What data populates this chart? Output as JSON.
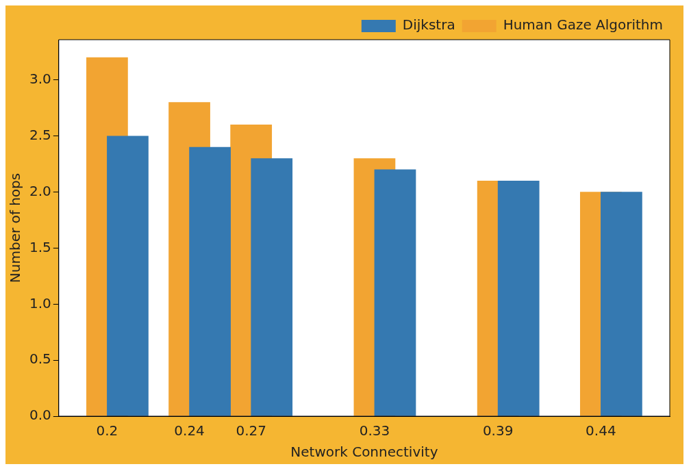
{
  "chart_data": {
    "type": "bar",
    "xlabel": "Network Connectivity",
    "ylabel": "Number of hops",
    "xlim": [
      0.1765,
      0.4735
    ],
    "xticks": [
      0.2,
      0.24,
      0.27,
      0.33,
      0.39,
      0.44
    ],
    "ylim": [
      0,
      3.36
    ],
    "yticks": [
      {
        "value": 0,
        "label": "0.0"
      },
      {
        "value": 0.5,
        "label": "0.5"
      },
      {
        "value": 1,
        "label": "1.0"
      },
      {
        "value": 1.5,
        "label": "1.5"
      },
      {
        "value": 2,
        "label": "2.0"
      },
      {
        "value": 2.5,
        "label": "2.5"
      },
      {
        "value": 3,
        "label": "3.0"
      }
    ],
    "series": [
      {
        "name": "Human Gaze Algorithm",
        "color": "#f2a432",
        "x": [
          0.2,
          0.24,
          0.27,
          0.33,
          0.39,
          0.44
        ],
        "values": [
          3.2,
          2.8,
          2.6,
          2.3,
          2.1,
          2.0
        ]
      },
      {
        "name": "Dijkstra",
        "color": "#3579b1",
        "x": [
          0.21,
          0.25,
          0.28,
          0.34,
          0.4,
          0.45
        ],
        "values": [
          2.5,
          2.4,
          2.3,
          2.2,
          2.1,
          2.0
        ]
      }
    ],
    "grid": false,
    "legend": "top right"
  }
}
